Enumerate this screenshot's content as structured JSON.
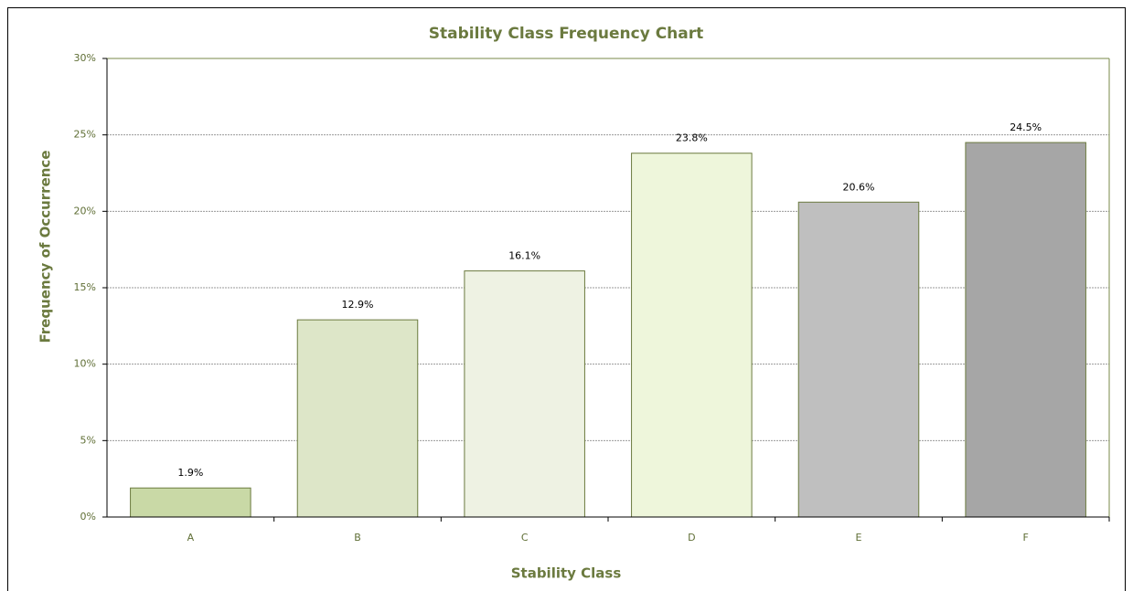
{
  "chart_data": {
    "type": "bar",
    "title": "Stability Class Frequency Chart",
    "x_label": "Stability Class",
    "y_label": "Frequency of Occurrence",
    "categories": [
      "A",
      "B",
      "C",
      "D",
      "E",
      "F"
    ],
    "values": [
      1.9,
      12.9,
      16.1,
      23.8,
      20.6,
      24.5
    ],
    "value_labels": [
      "1.9%",
      "12.9%",
      "16.1%",
      "23.8%",
      "20.6%",
      "24.5%"
    ],
    "colors": [
      "#c9d9a6",
      "#dde6c8",
      "#eef2e3",
      "#eef6db",
      "#bfbfbf",
      "#a6a6a6"
    ],
    "ylim": [
      0,
      30
    ],
    "yticks": [
      {
        "value": 0,
        "label": "0%"
      },
      {
        "value": 5,
        "label": "5%"
      },
      {
        "value": 10,
        "label": "10%"
      },
      {
        "value": 15,
        "label": "15%"
      },
      {
        "value": 20,
        "label": "20%"
      },
      {
        "value": 25,
        "label": "25%"
      },
      {
        "value": 30,
        "label": "30%"
      }
    ],
    "grid": true
  }
}
